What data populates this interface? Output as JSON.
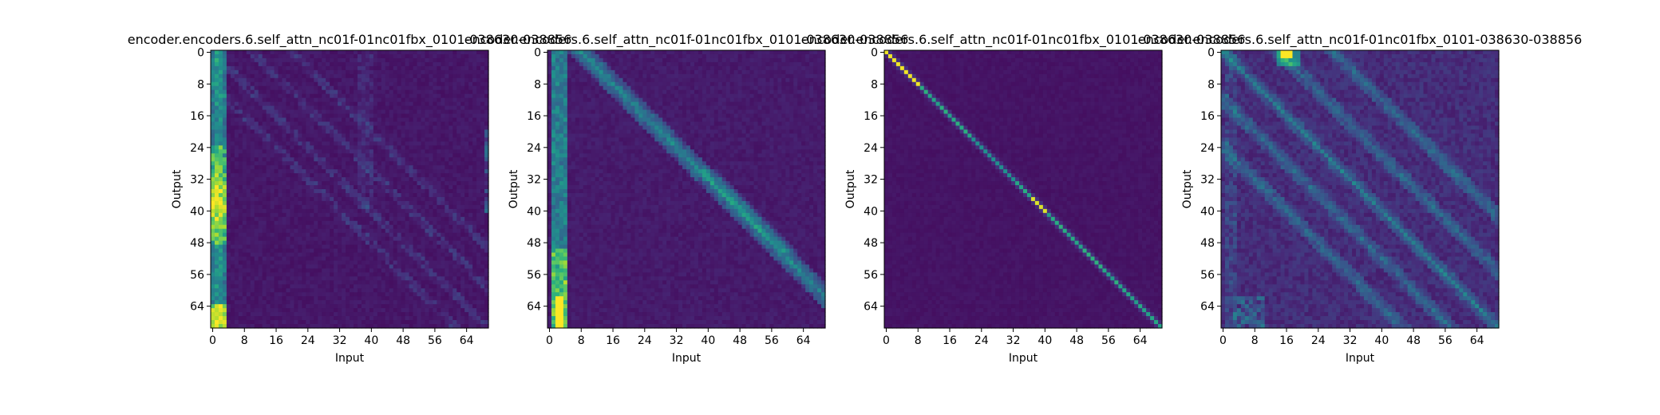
{
  "figure": {
    "background": "#ffffff"
  },
  "chart_data": [
    {
      "type": "heatmap",
      "title": "encoder.encoders.6.self_attn_nc01f-01nc01fbx_0101-038630-038856",
      "xlabel": "Input",
      "ylabel": "Output",
      "x_ticks": [
        "0",
        "8",
        "16",
        "24",
        "32",
        "40",
        "48",
        "56",
        "64"
      ],
      "y_ticks": [
        "0",
        "8",
        "16",
        "24",
        "32",
        "40",
        "48",
        "56",
        "64"
      ],
      "size": [
        70,
        70
      ],
      "colormap": "viridis",
      "pattern": "left columns 0-3 bright (yellow-green at rows 24-48 and 64-68), faint diffuse diagonals elsewhere"
    },
    {
      "type": "heatmap",
      "title": "encoder.encoders.6.self_attn_nc01f-01nc01fbx_0101-038630-038856",
      "xlabel": "Input",
      "ylabel": "Output",
      "x_ticks": [
        "0",
        "8",
        "16",
        "24",
        "32",
        "40",
        "48",
        "56",
        "64"
      ],
      "y_ticks": [
        "0",
        "8",
        "16",
        "24",
        "32",
        "40",
        "48",
        "56",
        "64"
      ],
      "size": [
        70,
        70
      ],
      "colormap": "viridis",
      "pattern": "bright band at input columns 2-4 (yellow near bottom), offset diagonal from (8,0) to (68,60)"
    },
    {
      "type": "heatmap",
      "title": "encoder.encoders.6.self_attn_nc01f-01nc01fbx_0101-038630-038856",
      "xlabel": "Input",
      "ylabel": "Output",
      "x_ticks": [
        "0",
        "8",
        "16",
        "24",
        "32",
        "40",
        "48",
        "56",
        "64"
      ],
      "y_ticks": [
        "0",
        "8",
        "16",
        "24",
        "32",
        "40",
        "48",
        "56",
        "64"
      ],
      "size": [
        70,
        70
      ],
      "colormap": "viridis",
      "pattern": "strong main diagonal, yellow at rows 0-8 and 37-40"
    },
    {
      "type": "heatmap",
      "title": "encoder.encoders.6.self_attn_nc01f-01nc01fbx_0101-038630-038856",
      "xlabel": "Input",
      "ylabel": "Output",
      "x_ticks": [
        "0",
        "8",
        "16",
        "24",
        "32",
        "40",
        "48",
        "56",
        "64"
      ],
      "y_ticks": [
        "0",
        "8",
        "16",
        "24",
        "32",
        "40",
        "48",
        "56",
        "64"
      ],
      "size": [
        70,
        70
      ],
      "colormap": "viridis",
      "pattern": "diffuse attention with several parallel diagonals, yellow spot at row 0 columns 15-17"
    }
  ]
}
